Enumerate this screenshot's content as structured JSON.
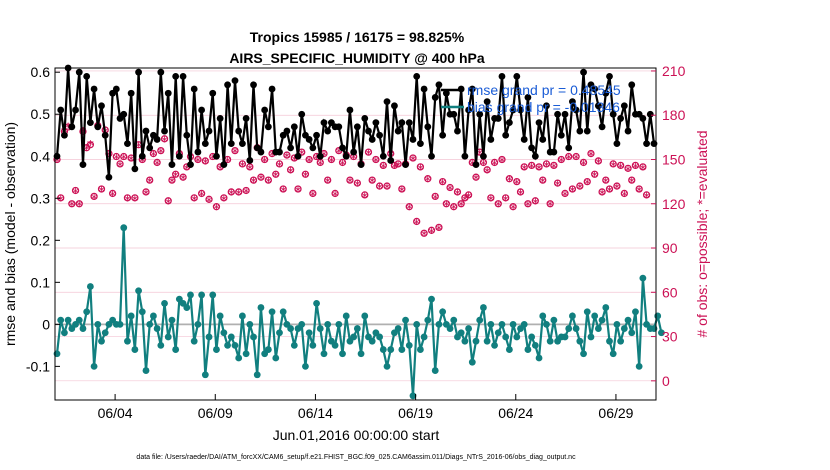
{
  "chart_data": {
    "type": "line",
    "title": "Tropics 15985 / 16175 = 98.825%",
    "subtitle": "AIRS_SPECIFIC_HUMIDITY @ 400 hPa",
    "xlabel": "Jun.01,2016 00:00:00 start",
    "ylabel": "rmse and bias (model - observation)",
    "y2label": "# of obs: o=possible; *=evaluated",
    "footnote": "data file: /Users/raeder/DAI/ATM_forcXX/CAM6_setup/f.e21.FHIST_BGC.f09_025.CAM6assim.011/Diags_NTrS_2016-06/obs_diag_output.nc",
    "x_tick_labels": [
      "06/04",
      "06/09",
      "06/14",
      "06/19",
      "06/24",
      "06/29"
    ],
    "x_tick_days": [
      4,
      9,
      14,
      19,
      24,
      29
    ],
    "xlim": [
      1.0,
      31.0
    ],
    "ylim": [
      -0.18,
      0.61
    ],
    "y_ticks": [
      -0.1,
      0,
      0.1,
      0.2,
      0.3,
      0.4,
      0.5,
      0.6
    ],
    "y_tick_labels": [
      "-0.1",
      "0",
      "0.1",
      "0.2",
      "0.3",
      "0.4",
      "0.5",
      "0.6"
    ],
    "y2lim": [
      -13,
      212
    ],
    "y2_ticks": [
      0,
      30,
      60,
      90,
      120,
      150,
      180,
      210
    ],
    "y2_tick_labels": [
      "0",
      "30",
      "60",
      "90",
      "120",
      "150",
      "180",
      "210"
    ],
    "legend": [
      "rmse grand pr = 0.48545",
      "bias grand pr = -0.01346"
    ],
    "colors": {
      "rmse": "#000000",
      "bias": "#117f7f",
      "obs": "#cc1155",
      "zero": "#b0b0b0",
      "legend_text": "#1a5cd6"
    },
    "series": [
      {
        "name": "rmse",
        "color": "#000000",
        "values": [
          0.4,
          0.51,
          0.45,
          0.61,
          0.47,
          0.51,
          0.6,
          0.38,
          0.59,
          0.48,
          0.56,
          0.47,
          0.52,
          0.45,
          0.35,
          0.55,
          0.56,
          0.49,
          0.5,
          0.43,
          0.55,
          0.37,
          0.6,
          0.4,
          0.46,
          0.42,
          0.45,
          0.44,
          0.6,
          0.46,
          0.55,
          0.38,
          0.59,
          0.4,
          0.59,
          0.45,
          0.38,
          0.56,
          0.41,
          0.51,
          0.43,
          0.46,
          0.55,
          0.4,
          0.49,
          0.38,
          0.57,
          0.43,
          0.58,
          0.46,
          0.43,
          0.49,
          0.39,
          0.57,
          0.42,
          0.41,
          0.51,
          0.47,
          0.56,
          0.41,
          0.41,
          0.45,
          0.46,
          0.42,
          0.47,
          0.4,
          0.5,
          0.45,
          0.44,
          0.42,
          0.45,
          0.4,
          0.48,
          0.46,
          0.48,
          0.47,
          0.47,
          0.42,
          0.4,
          0.51,
          0.41,
          0.47,
          0.38,
          0.49,
          0.46,
          0.44,
          0.48,
          0.45,
          0.4,
          0.53,
          0.39,
          0.52,
          0.46,
          0.48,
          0.38,
          0.48,
          0.44,
          0.59,
          0.43,
          0.56,
          0.47,
          0.4,
          0.54,
          0.57,
          0.45,
          0.55,
          0.5,
          0.5,
          0.46,
          0.56,
          0.4,
          0.51,
          0.56,
          0.38,
          0.5,
          0.4,
          0.53,
          0.44,
          0.49,
          0.49,
          0.59,
          0.45,
          0.48,
          0.51,
          0.59,
          0.51,
          0.44,
          0.54,
          0.42,
          0.4,
          0.48,
          0.44,
          0.52,
          0.41,
          0.41,
          0.5,
          0.45,
          0.5,
          0.42,
          0.53,
          0.51,
          0.46,
          0.6,
          0.46,
          0.57,
          0.56,
          0.52,
          0.47,
          0.55,
          0.59,
          0.5,
          0.43,
          0.49,
          0.52,
          0.46,
          0.57,
          0.5,
          0.5,
          0.49,
          0.43,
          0.5,
          0.43
        ]
      },
      {
        "name": "bias",
        "color": "#117f7f",
        "values": [
          -0.07,
          0.01,
          -0.02,
          0.01,
          -0.01,
          0.0,
          0.01,
          -0.01,
          0.03,
          0.09,
          -0.1,
          0.0,
          -0.04,
          -0.02,
          0.0,
          0.01,
          0.0,
          0.0,
          0.23,
          -0.04,
          0.02,
          -0.06,
          0.08,
          0.03,
          -0.11,
          0.0,
          0.02,
          -0.01,
          -0.05,
          0.05,
          -0.03,
          0.01,
          -0.06,
          0.06,
          0.05,
          0.04,
          0.07,
          -0.04,
          0.0,
          0.07,
          -0.12,
          -0.03,
          0.07,
          -0.06,
          0.02,
          -0.02,
          -0.05,
          -0.03,
          -0.05,
          -0.08,
          0.02,
          -0.07,
          0.0,
          -0.03,
          -0.12,
          0.04,
          -0.07,
          -0.06,
          0.03,
          -0.08,
          -0.02,
          0.03,
          0.0,
          -0.01,
          -0.05,
          -0.01,
          0.0,
          -0.1,
          -0.02,
          -0.05,
          0.05,
          -0.01,
          -0.07,
          0.0,
          -0.04,
          -0.05,
          0.0,
          -0.07,
          0.02,
          -0.04,
          -0.03,
          -0.01,
          -0.07,
          0.02,
          -0.03,
          -0.04,
          -0.02,
          -0.03,
          -0.06,
          -0.1,
          -0.06,
          -0.02,
          -0.01,
          -0.06,
          0.01,
          -0.05,
          -0.17,
          0.0,
          -0.06,
          -0.03,
          0.01,
          0.06,
          -0.11,
          0.0,
          0.03,
          0.0,
          -0.01,
          0.01,
          -0.03,
          -0.02,
          -0.04,
          -0.01,
          -0.09,
          -0.04,
          0.01,
          0.04,
          -0.04,
          0.0,
          -0.05,
          -0.02,
          0.0,
          -0.03,
          -0.06,
          0.0,
          -0.03,
          -0.01,
          0.0,
          -0.06,
          -0.03,
          -0.05,
          -0.08,
          0.02,
          0.0,
          -0.04,
          0.01,
          -0.04,
          -0.03,
          -0.03,
          -0.01,
          0.02,
          -0.01,
          -0.04,
          -0.07,
          0.03,
          -0.03,
          0.02,
          -0.01,
          0.01,
          0.04,
          -0.04,
          -0.07,
          0.0,
          -0.04,
          -0.01,
          0.01,
          -0.02,
          0.03,
          -0.1,
          0.11,
          0.0,
          -0.01,
          -0.01,
          0.02,
          -0.02
        ]
      },
      {
        "name": "obs_possible",
        "color": "#cc1155",
        "marker": "o",
        "values": [
          150,
          124,
          169,
          172,
          120,
          129,
          120,
          169,
          158,
          160,
          125,
          173,
          130,
          170,
          154,
          127,
          152,
          147,
          152,
          124,
          151,
          124,
          160,
          150,
          128,
          136,
          154,
          148,
          156,
          164,
          122,
          136,
          140,
          154,
          138,
          145,
          152,
          124,
          150,
          127,
          149,
          123,
          152,
          118,
          145,
          124,
          150,
          128,
          156,
          128,
          147,
          129,
          145,
          136,
          158,
          138,
          150,
          136,
          154,
          140,
          147,
          130,
          153,
          143,
          151,
          130,
          155,
          140,
          150,
          127,
          152,
          148,
          154,
          136,
          150,
          127,
          156,
          148,
          153,
          136,
          152,
          134,
          147,
          126,
          155,
          136,
          150,
          132,
          146,
          132,
          154,
          146,
          147,
          130,
          147,
          118,
          151,
          108,
          145,
          100,
          137,
          102,
          125,
          104,
          135,
          120,
          131,
          118,
          128,
          120,
          124,
          126,
          148,
          138,
          155,
          148,
          143,
          124,
          148,
          120,
          150,
          124,
          137,
          118,
          135,
          128,
          145,
          120,
          146,
          122,
          145,
          136,
          147,
          120,
          146,
          134,
          150,
          127,
          152,
          130,
          152,
          132,
          148,
          135,
          154,
          140,
          149,
          128,
          136,
          130,
          147,
          132,
          146,
          127,
          144,
          136,
          146,
          130,
          145,
          126
        ]
      },
      {
        "name": "obs_evaluated",
        "color": "#cc1155",
        "marker": "*",
        "values": [
          148,
          122,
          168,
          171,
          118,
          127,
          118,
          168,
          156,
          159,
          123,
          171,
          128,
          168,
          152,
          125,
          150,
          145,
          150,
          122,
          149,
          122,
          158,
          148,
          126,
          134,
          152,
          146,
          154,
          162,
          120,
          134,
          138,
          152,
          136,
          143,
          150,
          122,
          148,
          125,
          147,
          121,
          150,
          116,
          143,
          122,
          148,
          126,
          154,
          126,
          145,
          127,
          143,
          134,
          156,
          136,
          148,
          134,
          152,
          138,
          145,
          128,
          151,
          141,
          149,
          128,
          153,
          138,
          148,
          125,
          150,
          146,
          152,
          134,
          148,
          125,
          154,
          146,
          151,
          134,
          150,
          132,
          145,
          124,
          153,
          134,
          148,
          130,
          144,
          130,
          152,
          144,
          145,
          128,
          145,
          116,
          149,
          106,
          143,
          98,
          135,
          100,
          123,
          102,
          133,
          118,
          129,
          116,
          126,
          118,
          122,
          124,
          146,
          136,
          153,
          146,
          141,
          122,
          146,
          118,
          148,
          122,
          135,
          116,
          133,
          126,
          143,
          118,
          144,
          120,
          143,
          134,
          145,
          118,
          144,
          132,
          148,
          125,
          150,
          128,
          150,
          130,
          146,
          133,
          152,
          138,
          147,
          126,
          134,
          128,
          145,
          130,
          144,
          125,
          142,
          134,
          144,
          128,
          143,
          124
        ]
      }
    ]
  }
}
